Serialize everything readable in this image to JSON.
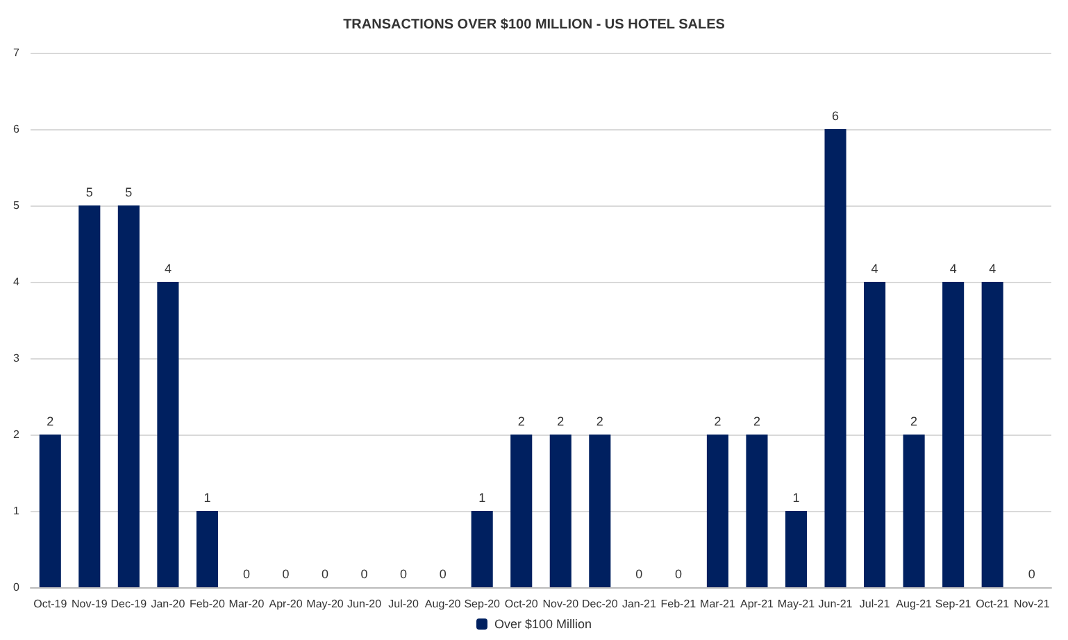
{
  "chart_data": {
    "type": "bar",
    "title": "TRANSACTIONS OVER $100 MILLION - US HOTEL SALES",
    "categories": [
      "Oct-19",
      "Nov-19",
      "Dec-19",
      "Jan-20",
      "Feb-20",
      "Mar-20",
      "Apr-20",
      "May-20",
      "Jun-20",
      "Jul-20",
      "Aug-20",
      "Sep-20",
      "Oct-20",
      "Nov-20",
      "Dec-20",
      "Jan-21",
      "Feb-21",
      "Mar-21",
      "Apr-21",
      "May-21",
      "Jun-21",
      "Jul-21",
      "Aug-21",
      "Sep-21",
      "Oct-21",
      "Nov-21"
    ],
    "series": [
      {
        "name": "Over $100 Million",
        "color": "#002060",
        "values": [
          2,
          5,
          5,
          4,
          1,
          0,
          0,
          0,
          0,
          0,
          0,
          1,
          2,
          2,
          2,
          0,
          0,
          2,
          2,
          1,
          6,
          4,
          2,
          4,
          4,
          0
        ]
      }
    ],
    "ylim": [
      0,
      7
    ],
    "yticks": [
      0,
      1,
      2,
      3,
      4,
      5,
      6,
      7
    ],
    "grid": "y",
    "legend": "bottom",
    "data_labels": true
  }
}
